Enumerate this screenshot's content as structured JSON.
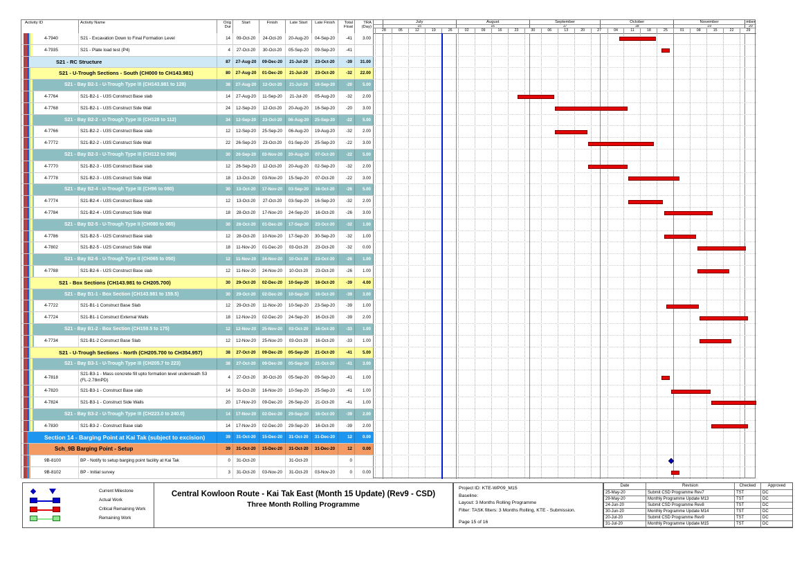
{
  "chart_data": {
    "type": "bar",
    "subtype": "gantt",
    "title": "Central Kowloon Route - Kai Tak East (Month 15 Update) (Rev9 - CSD) — Three Month Rolling Programme",
    "timeline_start": "27-Jun-20",
    "timeline_end": "06-Dec-20",
    "data_date_line": "26-Jul-20",
    "bars": [
      {
        "id": "4-7940",
        "kind": "critical",
        "start": "09-Oct-20",
        "finish": "24-Oct-20"
      },
      {
        "id": "4-7935",
        "kind": "critical",
        "start": "27-Oct-20",
        "finish": "30-Oct-20"
      },
      {
        "id": "4-7764",
        "kind": "critical",
        "start": "27-Aug-20",
        "finish": "11-Sep-20"
      },
      {
        "id": "4-7768",
        "kind": "critical",
        "start": "12-Sep-20",
        "finish": "12-Oct-20"
      },
      {
        "id": "4-7766",
        "kind": "critical",
        "start": "12-Sep-20",
        "finish": "25-Sep-20"
      },
      {
        "id": "4-7772",
        "kind": "critical",
        "start": "26-Sep-20",
        "finish": "23-Oct-20"
      },
      {
        "id": "4-7770",
        "kind": "critical",
        "start": "26-Sep-20",
        "finish": "12-Oct-20"
      },
      {
        "id": "4-7778",
        "kind": "critical",
        "start": "13-Oct-20",
        "finish": "03-Nov-20"
      },
      {
        "id": "4-7774",
        "kind": "critical",
        "start": "13-Oct-20",
        "finish": "27-Oct-20"
      },
      {
        "id": "4-7784",
        "kind": "critical",
        "start": "28-Oct-20",
        "finish": "17-Nov-20"
      },
      {
        "id": "4-7786",
        "kind": "critical",
        "start": "28-Oct-20",
        "finish": "10-Nov-20"
      },
      {
        "id": "4-7802",
        "kind": "critical",
        "start": "11-Nov-20",
        "finish": "01-Dec-20"
      },
      {
        "id": "4-7788",
        "kind": "critical",
        "start": "11-Nov-20",
        "finish": "24-Nov-20"
      },
      {
        "id": "4-7722",
        "kind": "critical",
        "start": "29-Oct-20",
        "finish": "11-Nov-20"
      },
      {
        "id": "4-7724",
        "kind": "critical",
        "start": "12-Nov-20",
        "finish": "02-Dec-20"
      },
      {
        "id": "4-7734",
        "kind": "critical",
        "start": "12-Nov-20",
        "finish": "25-Nov-20"
      },
      {
        "id": "4-7818",
        "kind": "critical",
        "start": "27-Oct-20",
        "finish": "30-Oct-20"
      },
      {
        "id": "4-7820",
        "kind": "critical",
        "start": "31-Oct-20",
        "finish": "16-Nov-20"
      },
      {
        "id": "4-7824",
        "kind": "critical",
        "start": "17-Nov-20",
        "finish": "09-Dec-20"
      },
      {
        "id": "4-7830",
        "kind": "critical",
        "start": "17-Nov-20",
        "finish": "02-Dec-20"
      },
      {
        "id": "9B-8100",
        "kind": "milestone",
        "start": "31-Oct-20",
        "finish": "31-Oct-20"
      },
      {
        "id": "9B-8102",
        "kind": "critical",
        "start": "31-Oct-20",
        "finish": "03-Nov-20"
      }
    ]
  },
  "colors": {
    "critical": "#e30505",
    "critical_border": "#7d0000",
    "actual": "#0000cc",
    "remaining_fill": "#8ce68c",
    "remaining_border": "#1e7a1e",
    "milestone": "#0000bb",
    "data_date_line": "#0018d4",
    "band_rc": "#cfe9f7",
    "band_yellow": "#ffff9e",
    "band_teal": "#8dbfc2",
    "band_section": "#1e96f0",
    "band_sch": "#f49b63",
    "stripes": {
      "m": "#9b4a4a",
      "r": "#d13b3b",
      "b": "#3a50c2",
      "c": "#8ed8ec",
      "y": "#ffff99"
    }
  },
  "table": {
    "columns": [
      "Activity ID",
      "Activity Name",
      "Orig Dur",
      "Start",
      "Finish",
      "Late Start",
      "Late Finish",
      "Total\nFloat",
      "TRA\n(Day)"
    ]
  },
  "timeline": {
    "start": "27-Jun-20",
    "end": "06-Dec-20",
    "data_date": "26-Jul-20",
    "months": [
      {
        "label": "",
        "period": "",
        "from": "27-Jun-20",
        "to": "01-Jul-20"
      },
      {
        "label": "July",
        "period": "15",
        "from": "01-Jul-20",
        "to": "01-Aug-20"
      },
      {
        "label": "August",
        "period": "16",
        "from": "01-Aug-20",
        "to": "01-Sep-20"
      },
      {
        "label": "September",
        "period": "17",
        "from": "01-Sep-20",
        "to": "01-Oct-20"
      },
      {
        "label": "October",
        "period": "18",
        "from": "01-Oct-20",
        "to": "01-Nov-20"
      },
      {
        "label": "November",
        "period": "19",
        "from": "01-Nov-20",
        "to": "01-Dec-20"
      },
      {
        "label": "mber",
        "period": "20",
        "from": "01-Dec-20",
        "to": "06-Dec-20"
      }
    ],
    "weeks": [
      "28-Jun-20",
      "05-Jul-20",
      "12-Jul-20",
      "19-Jul-20",
      "26-Jul-20",
      "02-Aug-20",
      "09-Aug-20",
      "16-Aug-20",
      "23-Aug-20",
      "30-Aug-20",
      "06-Sep-20",
      "13-Sep-20",
      "20-Sep-20",
      "27-Sep-20",
      "04-Oct-20",
      "11-Oct-20",
      "18-Oct-20",
      "25-Oct-20",
      "01-Nov-20",
      "08-Nov-20",
      "15-Nov-20",
      "22-Nov-20",
      "29-Nov-20"
    ]
  },
  "rows": [
    {
      "t": "act",
      "st": "a5",
      "id": "4-7940",
      "name": "S21 - Excavation Down to Final Formation Level",
      "v": [
        "14",
        "09-Oct-20",
        "24-Oct-20",
        "20-Aug-20",
        "04-Sep-20",
        "-41",
        "3.00"
      ],
      "bar": [
        "09-Oct-20",
        "24-Oct-20"
      ]
    },
    {
      "t": "act",
      "st": "a5",
      "id": "4-7935",
      "name": "S21 - Plate load test (P4)",
      "v": [
        "4",
        "27-Oct-20",
        "30-Oct-20",
        "05-Sep-20",
        "09-Sep-20",
        "-41",
        ""
      ],
      "bar": [
        "27-Oct-20",
        "30-Oct-20"
      ]
    },
    {
      "t": "band",
      "st": "rc",
      "name": "S21 - RC Structure",
      "v": [
        "87",
        "27-Aug-20",
        "09-Dec-20",
        "21-Jul-20",
        "23-Oct-20",
        "-39",
        "31.00"
      ]
    },
    {
      "t": "band",
      "st": "yl",
      "name": "S21 - U-Trough Sections - South (CH000 to CH143.981)",
      "v": [
        "80",
        "27-Aug-20",
        "01-Dec-20",
        "21-Jul-20",
        "23-Oct-20",
        "-32",
        "22.00"
      ]
    },
    {
      "t": "band",
      "st": "tl",
      "name": "S21 - Bay B2-1 - U-Trough Type III (CH143.981 to 128)",
      "v": [
        "38",
        "27-Aug-20",
        "12-Oct-20",
        "21-Jul-20",
        "16-Sep-20",
        "-20",
        "5.00"
      ]
    },
    {
      "t": "act",
      "st": "a6",
      "id": "4-7764",
      "name": "S21-B2-1 - U3S Construct Base slab",
      "v": [
        "14",
        "27-Aug-20",
        "11-Sep-20",
        "21-Jul-20",
        "05-Aug-20",
        "-32",
        "2.00"
      ],
      "bar": [
        "27-Aug-20",
        "11-Sep-20"
      ]
    },
    {
      "t": "act",
      "st": "a6",
      "id": "4-7768",
      "name": "S21-B2-1 - U3S Construct Side Wall",
      "v": [
        "24",
        "12-Sep-20",
        "12-Oct-20",
        "20-Aug-20",
        "16-Sep-20",
        "-20",
        "3.00"
      ],
      "bar": [
        "12-Sep-20",
        "12-Oct-20"
      ]
    },
    {
      "t": "band",
      "st": "tl",
      "name": "S21 - Bay B2-2 - U-Trough  Type III (CH128 to 112)",
      "v": [
        "34",
        "12-Sep-20",
        "23-Oct-20",
        "06-Aug-20",
        "25-Sep-20",
        "-22",
        "5.00"
      ]
    },
    {
      "t": "act",
      "st": "a6",
      "id": "4-7766",
      "name": "S21-B2-2 - U3S Construct Base slab",
      "v": [
        "12",
        "12-Sep-20",
        "25-Sep-20",
        "06-Aug-20",
        "19-Aug-20",
        "-32",
        "2.00"
      ],
      "bar": [
        "12-Sep-20",
        "25-Sep-20"
      ]
    },
    {
      "t": "act",
      "st": "a6",
      "id": "4-7772",
      "name": "S21-B2-2 - U3S Construct Side Wall",
      "v": [
        "22",
        "26-Sep-20",
        "23-Oct-20",
        "01-Sep-20",
        "25-Sep-20",
        "-22",
        "3.00"
      ],
      "bar": [
        "26-Sep-20",
        "23-Oct-20"
      ]
    },
    {
      "t": "band",
      "st": "tl",
      "name": "S21 - Bay B2-3 - U-Trough  Type III (CH112 to 096)",
      "v": [
        "30",
        "26-Sep-20",
        "03-Nov-20",
        "20-Aug-20",
        "07-Oct-20",
        "-22",
        "5.00"
      ]
    },
    {
      "t": "act",
      "st": "a6",
      "id": "4-7770",
      "name": "S21-B2-3 - U3S Construct Base slab",
      "v": [
        "12",
        "26-Sep-20",
        "12-Oct-20",
        "20-Aug-20",
        "02-Sep-20",
        "-32",
        "2.00"
      ],
      "bar": [
        "26-Sep-20",
        "12-Oct-20"
      ]
    },
    {
      "t": "act",
      "st": "a6",
      "id": "4-7778",
      "name": "S21-B2-3 - U3S Construct Side Wall",
      "v": [
        "18",
        "13-Oct-20",
        "03-Nov-20",
        "15-Sep-20",
        "07-Oct-20",
        "-22",
        "3.00"
      ],
      "bar": [
        "13-Oct-20",
        "03-Nov-20"
      ]
    },
    {
      "t": "band",
      "st": "tl",
      "name": "S21 - Bay B2-4 - U-Trough  Type III (CH96 to 080)",
      "v": [
        "30",
        "13-Oct-20",
        "17-Nov-20",
        "03-Sep-20",
        "16-Oct-20",
        "-26",
        "5.00"
      ]
    },
    {
      "t": "act",
      "st": "a6",
      "id": "4-7774",
      "name": "S21-B2-4 - U3S Construct Base slab",
      "v": [
        "12",
        "13-Oct-20",
        "27-Oct-20",
        "03-Sep-20",
        "16-Sep-20",
        "-32",
        "2.00"
      ],
      "bar": [
        "13-Oct-20",
        "27-Oct-20"
      ]
    },
    {
      "t": "act",
      "st": "a6",
      "id": "4-7784",
      "name": "S21-B2-4 - U3S Construct Side Wall",
      "v": [
        "18",
        "28-Oct-20",
        "17-Nov-20",
        "24-Sep-20",
        "16-Oct-20",
        "-26",
        "3.00"
      ],
      "bar": [
        "28-Oct-20",
        "17-Nov-20"
      ]
    },
    {
      "t": "band",
      "st": "tl",
      "name": "S21 - Bay B2-5 - U-Trough  Type II (CH080 to 065)",
      "v": [
        "30",
        "28-Oct-20",
        "01-Dec-20",
        "17-Sep-20",
        "23-Oct-20",
        "-32",
        "1.00"
      ]
    },
    {
      "t": "act",
      "st": "a6",
      "id": "4-7786",
      "name": "S21-B2-5 - U2S Construct Base slab",
      "v": [
        "12",
        "28-Oct-20",
        "10-Nov-20",
        "17-Sep-20",
        "30-Sep-20",
        "-32",
        "1.00"
      ],
      "bar": [
        "28-Oct-20",
        "10-Nov-20"
      ]
    },
    {
      "t": "act",
      "st": "a6",
      "id": "4-7802",
      "name": "S21-B2-5 - U2S Construct Side Wall",
      "v": [
        "18",
        "11-Nov-20",
        "01-Dec-20",
        "03-Oct-20",
        "23-Oct-20",
        "-32",
        "0.00"
      ],
      "bar": [
        "11-Nov-20",
        "01-Dec-20"
      ]
    },
    {
      "t": "band",
      "st": "tl",
      "name": "S21 - Bay B2-6 - U-Trough  Type II (CH065 to 050)",
      "v": [
        "12",
        "11-Nov-20",
        "24-Nov-20",
        "10-Oct-20",
        "23-Oct-20",
        "-26",
        "1.00"
      ]
    },
    {
      "t": "act",
      "st": "a6",
      "id": "4-7788",
      "name": "S21-B2-6 - U2S Construct Base slab",
      "v": [
        "12",
        "11-Nov-20",
        "24-Nov-20",
        "10-Oct-20",
        "23-Oct-20",
        "-26",
        "1.00"
      ],
      "bar": [
        "11-Nov-20",
        "24-Nov-20"
      ]
    },
    {
      "t": "band",
      "st": "yl",
      "name": "S21 - Box Sections (CH143.981 to CH205.700)",
      "v": [
        "30",
        "29-Oct-20",
        "02-Dec-20",
        "10-Sep-20",
        "16-Oct-20",
        "-39",
        "4.00"
      ]
    },
    {
      "t": "band",
      "st": "tl",
      "name": "S21 - Bay B1-1 - Box Section (CH143.981 to 159.5)",
      "v": [
        "30",
        "29-Oct-20",
        "02-Dec-20",
        "10-Sep-20",
        "16-Oct-20",
        "-39",
        "3.00"
      ]
    },
    {
      "t": "act",
      "st": "a6",
      "id": "4-7722",
      "name": "S21-B1-1 Construct Base Slab",
      "v": [
        "12",
        "29-Oct-20",
        "11-Nov-20",
        "10-Sep-20",
        "23-Sep-20",
        "-39",
        "1.00"
      ],
      "bar": [
        "29-Oct-20",
        "11-Nov-20"
      ]
    },
    {
      "t": "act",
      "st": "a6",
      "id": "4-7724",
      "name": "S21-B1-1 Construct External Walls",
      "v": [
        "18",
        "12-Nov-20",
        "02-Dec-20",
        "24-Sep-20",
        "16-Oct-20",
        "-39",
        "2.00"
      ],
      "bar": [
        "12-Nov-20",
        "02-Dec-20"
      ]
    },
    {
      "t": "band",
      "st": "tl",
      "name": "S21 - Bay B1-2 - Box Section (CH159.5 to 175)",
      "v": [
        "12",
        "12-Nov-20",
        "25-Nov-20",
        "03-Oct-20",
        "16-Oct-20",
        "-33",
        "1.00"
      ]
    },
    {
      "t": "act",
      "st": "a6",
      "id": "4-7734",
      "name": "S21-B1-2 Construct Base Slab",
      "v": [
        "12",
        "12-Nov-20",
        "25-Nov-20",
        "03-Oct-20",
        "16-Oct-20",
        "-33",
        "1.00"
      ],
      "bar": [
        "12-Nov-20",
        "25-Nov-20"
      ]
    },
    {
      "t": "band",
      "st": "yl",
      "name": "S21 - U-Trough Sections - North (CH205.700 to CH354.957)",
      "v": [
        "38",
        "27-Oct-20",
        "09-Dec-20",
        "05-Sep-20",
        "21-Oct-20",
        "-41",
        "5.00"
      ]
    },
    {
      "t": "band",
      "st": "tl",
      "name": "S21 - Bay B3-1 - U-Trough Type III (CH205.7 to 223)",
      "v": [
        "38",
        "27-Oct-20",
        "09-Dec-20",
        "05-Sep-20",
        "21-Oct-20",
        "-41",
        "3.00"
      ]
    },
    {
      "t": "act",
      "st": "a6",
      "tall": true,
      "id": "4-7818",
      "name": "S21-B3-1 - Mass concrete fill upto formation level underneath S3 (FL-2.78mPD)",
      "v": [
        "4",
        "27-Oct-20",
        "30-Oct-20",
        "05-Sep-20",
        "09-Sep-20",
        "-41",
        "1.00"
      ],
      "bar": [
        "27-Oct-20",
        "30-Oct-20"
      ]
    },
    {
      "t": "act",
      "st": "a6",
      "id": "4-7820",
      "name": "S21-B3-1 - Construct Base slab",
      "v": [
        "14",
        "31-Oct-20",
        "16-Nov-20",
        "10-Sep-20",
        "25-Sep-20",
        "-41",
        "1.00"
      ],
      "bar": [
        "31-Oct-20",
        "16-Nov-20"
      ]
    },
    {
      "t": "act",
      "st": "a6",
      "id": "4-7824",
      "name": "S21-B3-1 - Construct Side Walls",
      "v": [
        "20",
        "17-Nov-20",
        "09-Dec-20",
        "26-Sep-20",
        "21-Oct-20",
        "-41",
        "1.00"
      ],
      "bar": [
        "17-Nov-20",
        "09-Dec-20"
      ]
    },
    {
      "t": "band",
      "st": "tl",
      "name": "S21 - Bay B3-2 - U-Trough  Type III (CH223.0 to 240.0)",
      "v": [
        "14",
        "17-Nov-20",
        "02-Dec-20",
        "29-Sep-20",
        "16-Oct-20",
        "-39",
        "2.00"
      ]
    },
    {
      "t": "act",
      "st": "a6",
      "id": "4-7830",
      "name": "S21-B3-2 - Construct Base slab",
      "v": [
        "14",
        "17-Nov-20",
        "02-Dec-20",
        "29-Sep-20",
        "16-Oct-20",
        "-39",
        "2.00"
      ],
      "bar": [
        "17-Nov-20",
        "02-Dec-20"
      ]
    },
    {
      "t": "band",
      "st": "s14",
      "name": "Section 14 - Barging Point at Kai Tak (subject to excision)",
      "v": [
        "39",
        "31-Oct-20",
        "15-Dec-20",
        "31-Oct-20",
        "31-Dec-20",
        "12",
        "0.00"
      ]
    },
    {
      "t": "band",
      "st": "sch",
      "name": "Sch_9B Barging Point - Setup",
      "v": [
        "39",
        "31-Oct-20",
        "15-Dec-20",
        "31-Oct-20",
        "31-Dec-20",
        "12",
        "0.00"
      ]
    },
    {
      "t": "act",
      "st": "a9b",
      "id": "9B-8100",
      "name": "BP - Notify to setup barging point facility at Kai Tak",
      "v": [
        "0",
        "31-Oct-20",
        "",
        "31-Oct-20",
        "",
        "0",
        ""
      ],
      "ms": "31-Oct-20"
    },
    {
      "t": "act",
      "st": "a9b",
      "id": "9B-8102",
      "name": "BP - Initial survey",
      "v": [
        "3",
        "31-Oct-20",
        "03-Nov-20",
        "31-Oct-20",
        "03-Nov-20",
        "0",
        "0.00"
      ],
      "bar": [
        "31-Oct-20",
        "03-Nov-20"
      ]
    }
  ],
  "footer": {
    "legend": [
      {
        "kind": "milestone",
        "label": "Current Milestone"
      },
      {
        "kind": "actual",
        "label": "Actual Work"
      },
      {
        "kind": "critical",
        "label": "Critical Remaining Work"
      },
      {
        "kind": "remaining",
        "label": "Remaining Work"
      }
    ],
    "title": {
      "line1": "Central Kowloon Route - Kai Tak East (Month 15 Update) (Rev9 - CSD)",
      "line2": "Three Month Rolling Programme"
    },
    "project": {
      "lines": [
        "Project ID: KTE-WP09_M15",
        "Baseline:",
        "Layout: 3 Months Rolling Programme",
        "Filter: TASK filters: 3 Months Rolling, KTE - Submission."
      ],
      "page": "Page 15 of 16"
    },
    "revisions": {
      "headers": [
        "Date",
        "Revision",
        "Checked",
        "Approved"
      ],
      "rows": [
        [
          "25-May-20",
          "Submit CSD Programme Rev7",
          "TST",
          "DC"
        ],
        [
          "29-May-20",
          "Monthly Programme Update M13",
          "TST",
          "DC"
        ],
        [
          "24-Jun-20",
          "Submit CSD Programme Rev8",
          "TST",
          "DC"
        ],
        [
          "30-Jun-20",
          "Monthly Programme Update M14",
          "TST",
          "DC"
        ],
        [
          "20-Jul-20",
          "Submit CSD Programme Rev9",
          "TST",
          "DC"
        ],
        [
          "31-Jul-20",
          "Monthly Programme Update M15",
          "TST",
          "DC"
        ]
      ]
    }
  }
}
